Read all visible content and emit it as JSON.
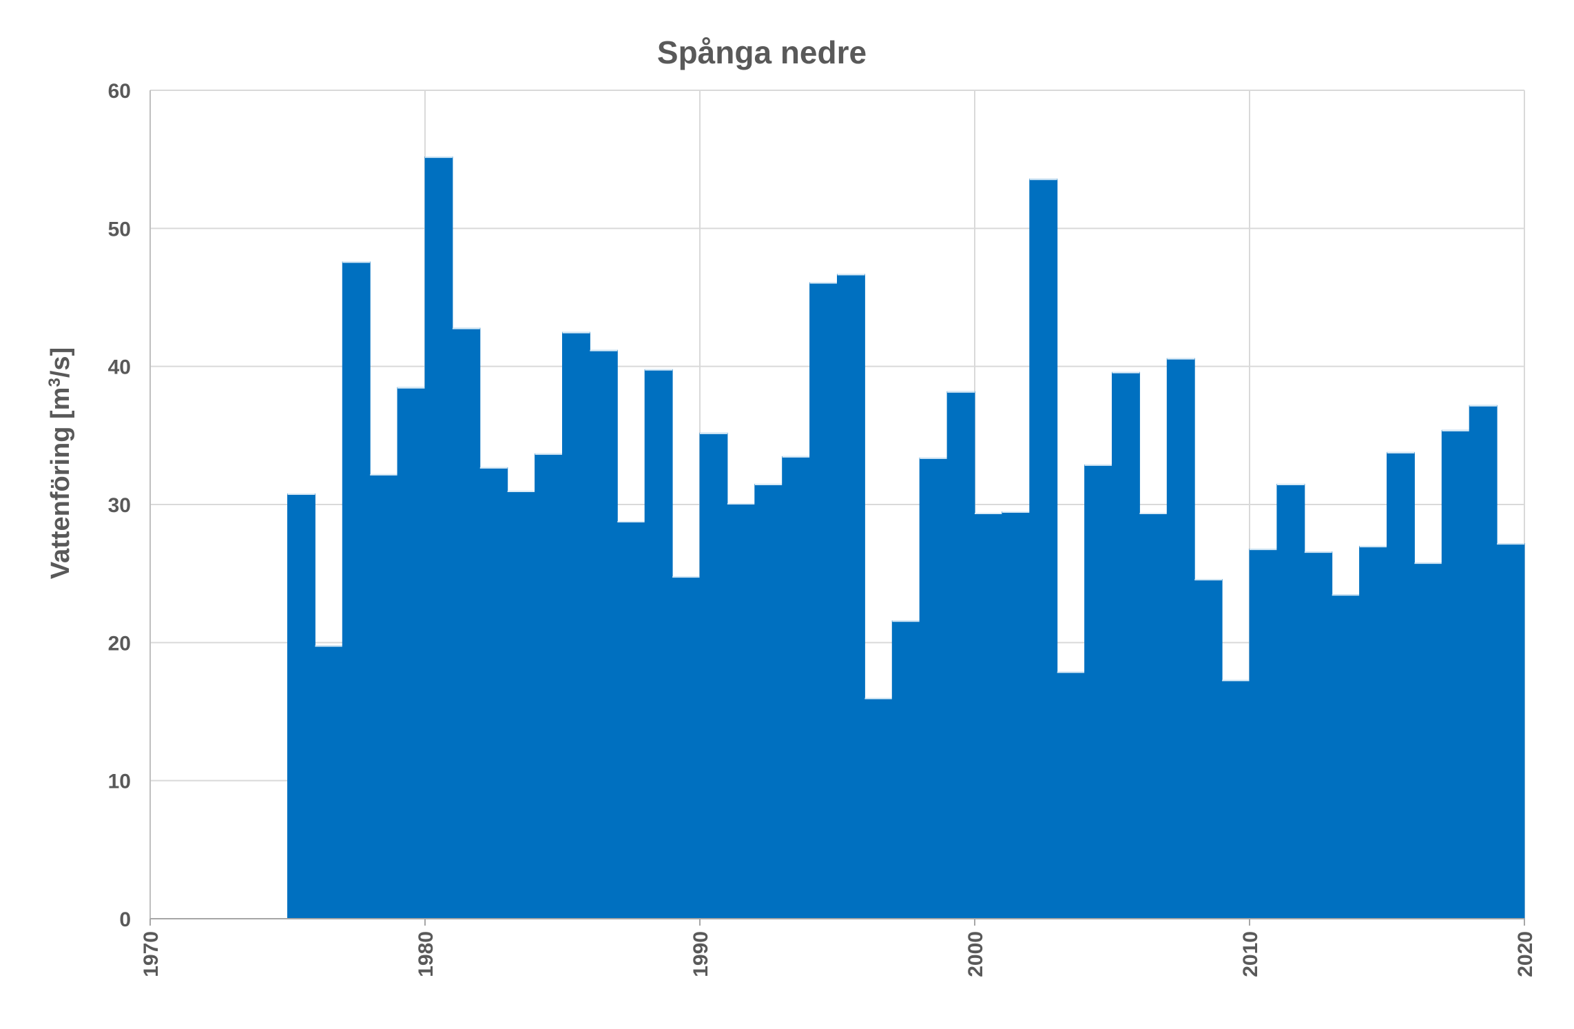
{
  "chart_data": {
    "type": "bar",
    "title": "Spånga nedre",
    "xlabel": "",
    "ylabel": "Vattenföring [m³/s]",
    "ylabel_parts": {
      "prefix": "Vattenföring [m",
      "superscript": "3",
      "suffix": "/s]"
    },
    "xlim": [
      1970,
      2020
    ],
    "ylim": [
      0,
      60
    ],
    "x_ticks": [
      "1970",
      "1980",
      "1990",
      "2000",
      "2010",
      "2020"
    ],
    "y_ticks": [
      "0",
      "10",
      "20",
      "30",
      "40",
      "50",
      "60"
    ],
    "grid": true,
    "bar_color": "#0070C0",
    "grid_color": "#D9D9D9",
    "text_color": "#595959",
    "categories": [
      1975,
      1976,
      1977,
      1978,
      1979,
      1980,
      1981,
      1982,
      1983,
      1984,
      1985,
      1986,
      1987,
      1988,
      1989,
      1990,
      1991,
      1992,
      1993,
      1994,
      1995,
      1996,
      1997,
      1998,
      1999,
      2000,
      2001,
      2002,
      2003,
      2004,
      2005,
      2006,
      2007,
      2008,
      2009,
      2010,
      2011,
      2012,
      2013,
      2014,
      2015,
      2016,
      2017,
      2018,
      2019
    ],
    "values": [
      30.8,
      19.8,
      47.6,
      32.2,
      38.5,
      55.2,
      42.8,
      32.7,
      31.0,
      33.7,
      42.5,
      41.2,
      28.8,
      39.8,
      24.8,
      35.2,
      30.1,
      31.5,
      33.5,
      46.1,
      46.7,
      16.0,
      21.6,
      33.4,
      38.2,
      29.4,
      29.5,
      53.6,
      17.9,
      32.9,
      39.6,
      29.4,
      40.6,
      24.6,
      17.3,
      26.8,
      31.5,
      26.6,
      23.5,
      27.0,
      33.8,
      25.8,
      35.4,
      37.2,
      27.2
    ]
  }
}
